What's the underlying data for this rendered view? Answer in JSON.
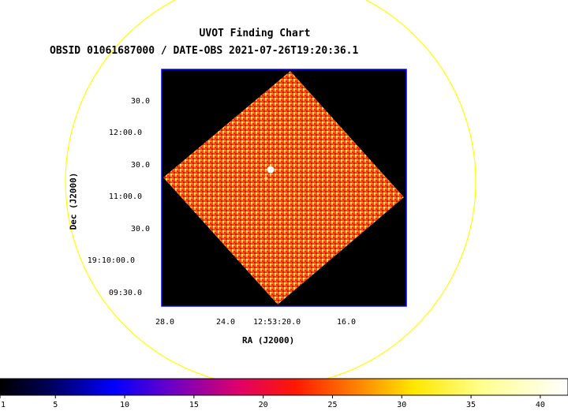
{
  "title": "UVOT Finding Chart",
  "subtitle": "OBSID 01061687000 / DATE-OBS 2021-07-26T19:20:36.1",
  "ra_label": "RA (J2000)",
  "dec_label": "Dec (J2000)",
  "ra_ticks": [
    "28.0",
    "24.0",
    "12:53:20.0",
    "16.0"
  ],
  "dec_ticks": [
    "30.0",
    "12:00.0",
    "30.0",
    "11:00.0",
    "30.0",
    "19:10:00.0",
    "09:30.0"
  ],
  "colorbar": {
    "ticks": [
      "1",
      "5",
      "10",
      "15",
      "20",
      "25",
      "30",
      "35",
      "40"
    ],
    "min": 1,
    "max": 42
  },
  "colors": {
    "circle": "#ffff00",
    "frame": "#0000ff",
    "background": "#000000"
  }
}
